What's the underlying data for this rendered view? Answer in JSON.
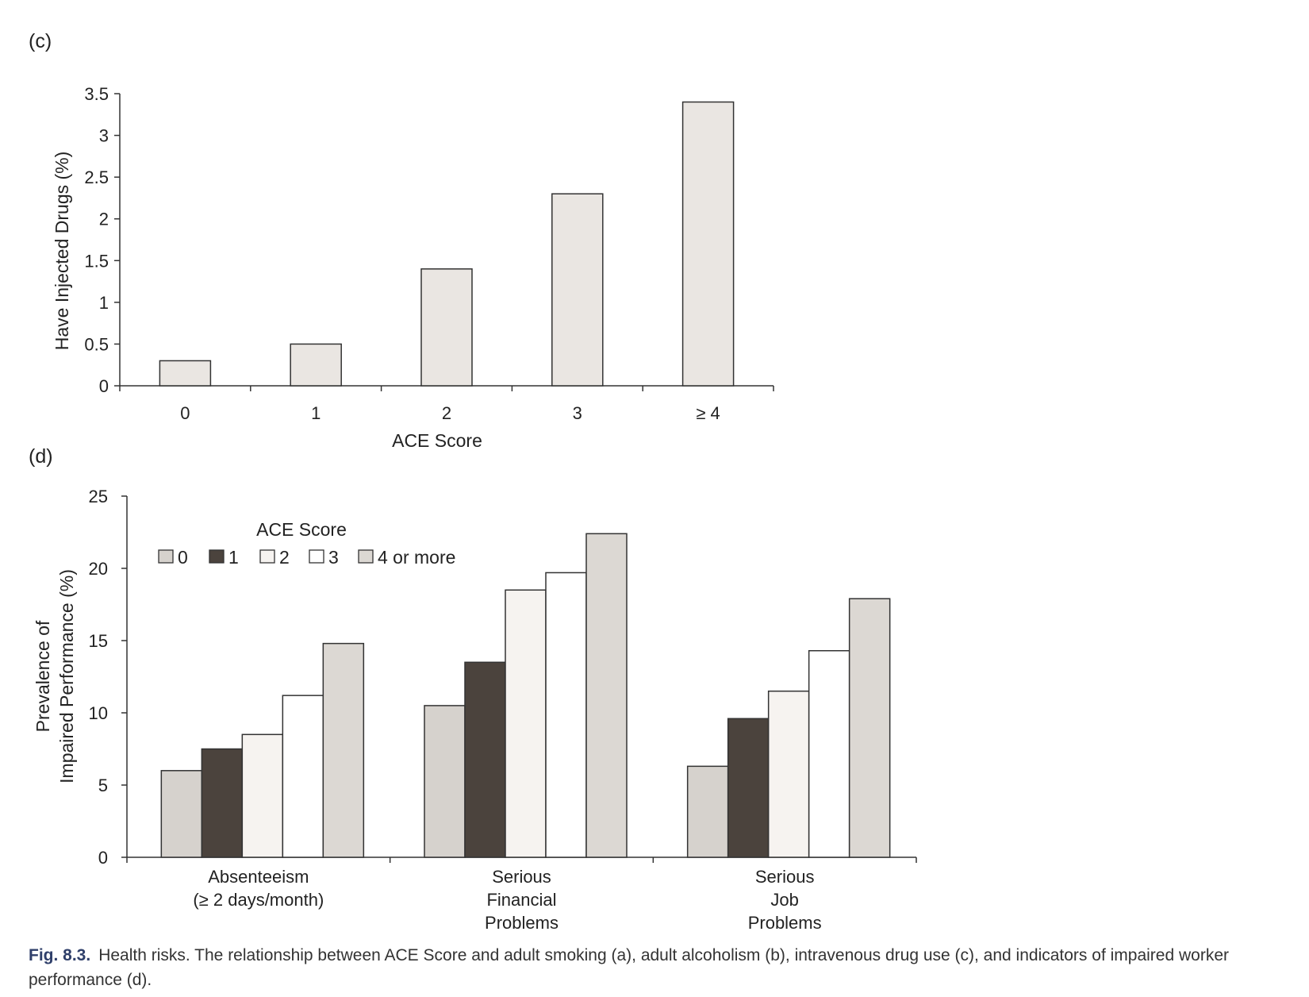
{
  "chart_data": [
    {
      "panel": "(c)",
      "type": "bar",
      "categories": [
        "0",
        "1",
        "2",
        "3",
        "≥ 4"
      ],
      "values": [
        0.3,
        0.5,
        1.4,
        2.3,
        3.4
      ],
      "xlabel": "ACE Score",
      "ylabel": "Have Injected Drugs (%)",
      "ylim": [
        0,
        3.5
      ],
      "yticks": [
        "0",
        "0.5",
        "1",
        "1.5",
        "2",
        "2.5",
        "3",
        "3.5"
      ],
      "bar_color": "#eae6e2",
      "grid": false
    },
    {
      "panel": "(d)",
      "type": "bar",
      "categories": [
        [
          "Absenteeism",
          "(≥ 2 days/month)"
        ],
        [
          "Serious",
          "Financial",
          "Problems"
        ],
        [
          "Serious",
          "Job",
          "Problems"
        ]
      ],
      "series": [
        {
          "name": "0",
          "values": [
            6.0,
            10.5,
            6.3
          ],
          "color": "#d6d2cd"
        },
        {
          "name": "1",
          "values": [
            7.5,
            13.5,
            9.6
          ],
          "color": "#4b433d"
        },
        {
          "name": "2",
          "values": [
            8.5,
            18.5,
            11.5
          ],
          "color": "#f6f3f0"
        },
        {
          "name": "3",
          "values": [
            11.2,
            19.7,
            14.3
          ],
          "color": "#ffffff"
        },
        {
          "name": "4 or more",
          "values": [
            14.8,
            22.4,
            17.9
          ],
          "color": "#dcd8d3"
        }
      ],
      "legend_title": "ACE Score",
      "legend_position": "top-left",
      "ylabel": [
        "Prevalence of",
        "Impaired Performance (%)"
      ],
      "ylim": [
        0,
        25
      ],
      "yticks": [
        "0",
        "5",
        "10",
        "15",
        "20",
        "25"
      ],
      "grid": false
    }
  ],
  "caption": {
    "figure_number": "Fig. 8.3.",
    "text": "Health risks. The relationship between ACE Score and adult smoking (a), adult alcoholism (b), intravenous drug use (c), and indicators of impaired worker performance (d)."
  }
}
